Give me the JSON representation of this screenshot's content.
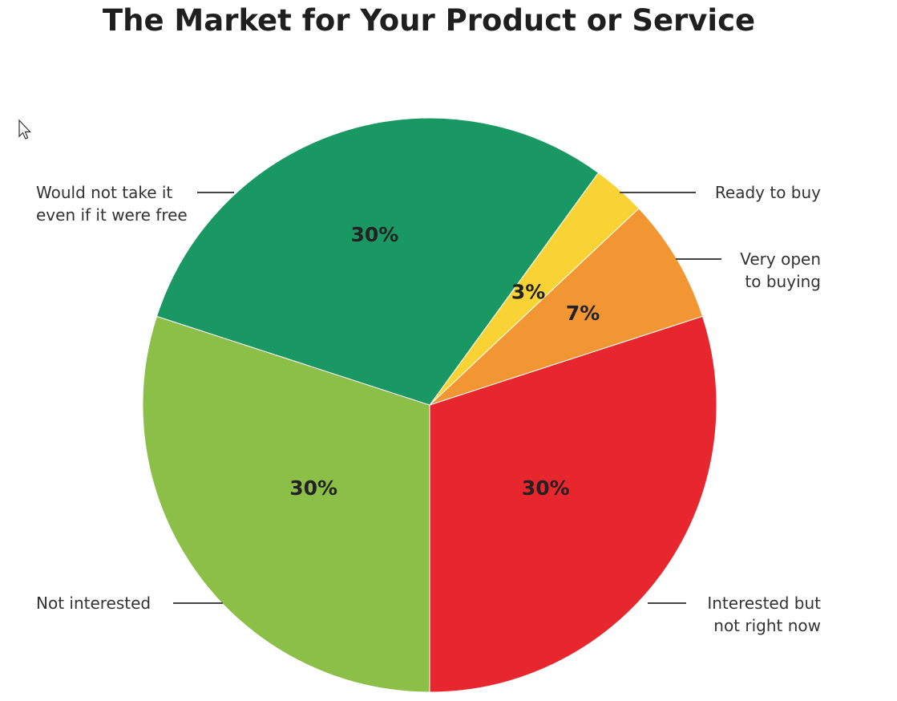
{
  "chart_data": {
    "type": "pie",
    "title": "The Market for Your Product or Service",
    "slices": [
      {
        "label": "Ready to buy",
        "value": 3,
        "value_label": "3%",
        "color": "#f9d333"
      },
      {
        "label": "Very open to buying",
        "value": 7,
        "value_label": "7%",
        "color": "#f29533"
      },
      {
        "label": "Interested but not right now",
        "value": 30,
        "value_label": "30%",
        "color": "#e8262e"
      },
      {
        "label": "Not interested",
        "value": 30,
        "value_label": "30%",
        "color": "#8cbf48"
      },
      {
        "label": "Would not take it even if it were free",
        "value": 30,
        "value_label": "30%",
        "color": "#1a9863"
      }
    ],
    "callouts": [
      {
        "lines": [
          "Ready to buy"
        ]
      },
      {
        "lines": [
          "Very open",
          "to buying"
        ]
      },
      {
        "lines": [
          "Interested but",
          "not right now"
        ]
      },
      {
        "lines": [
          "Not interested"
        ]
      },
      {
        "lines": [
          "Would not take it",
          "even if it were free"
        ]
      }
    ],
    "legend": "none",
    "grid": false
  },
  "cursor": {
    "icon": "mouse-pointer-icon"
  }
}
